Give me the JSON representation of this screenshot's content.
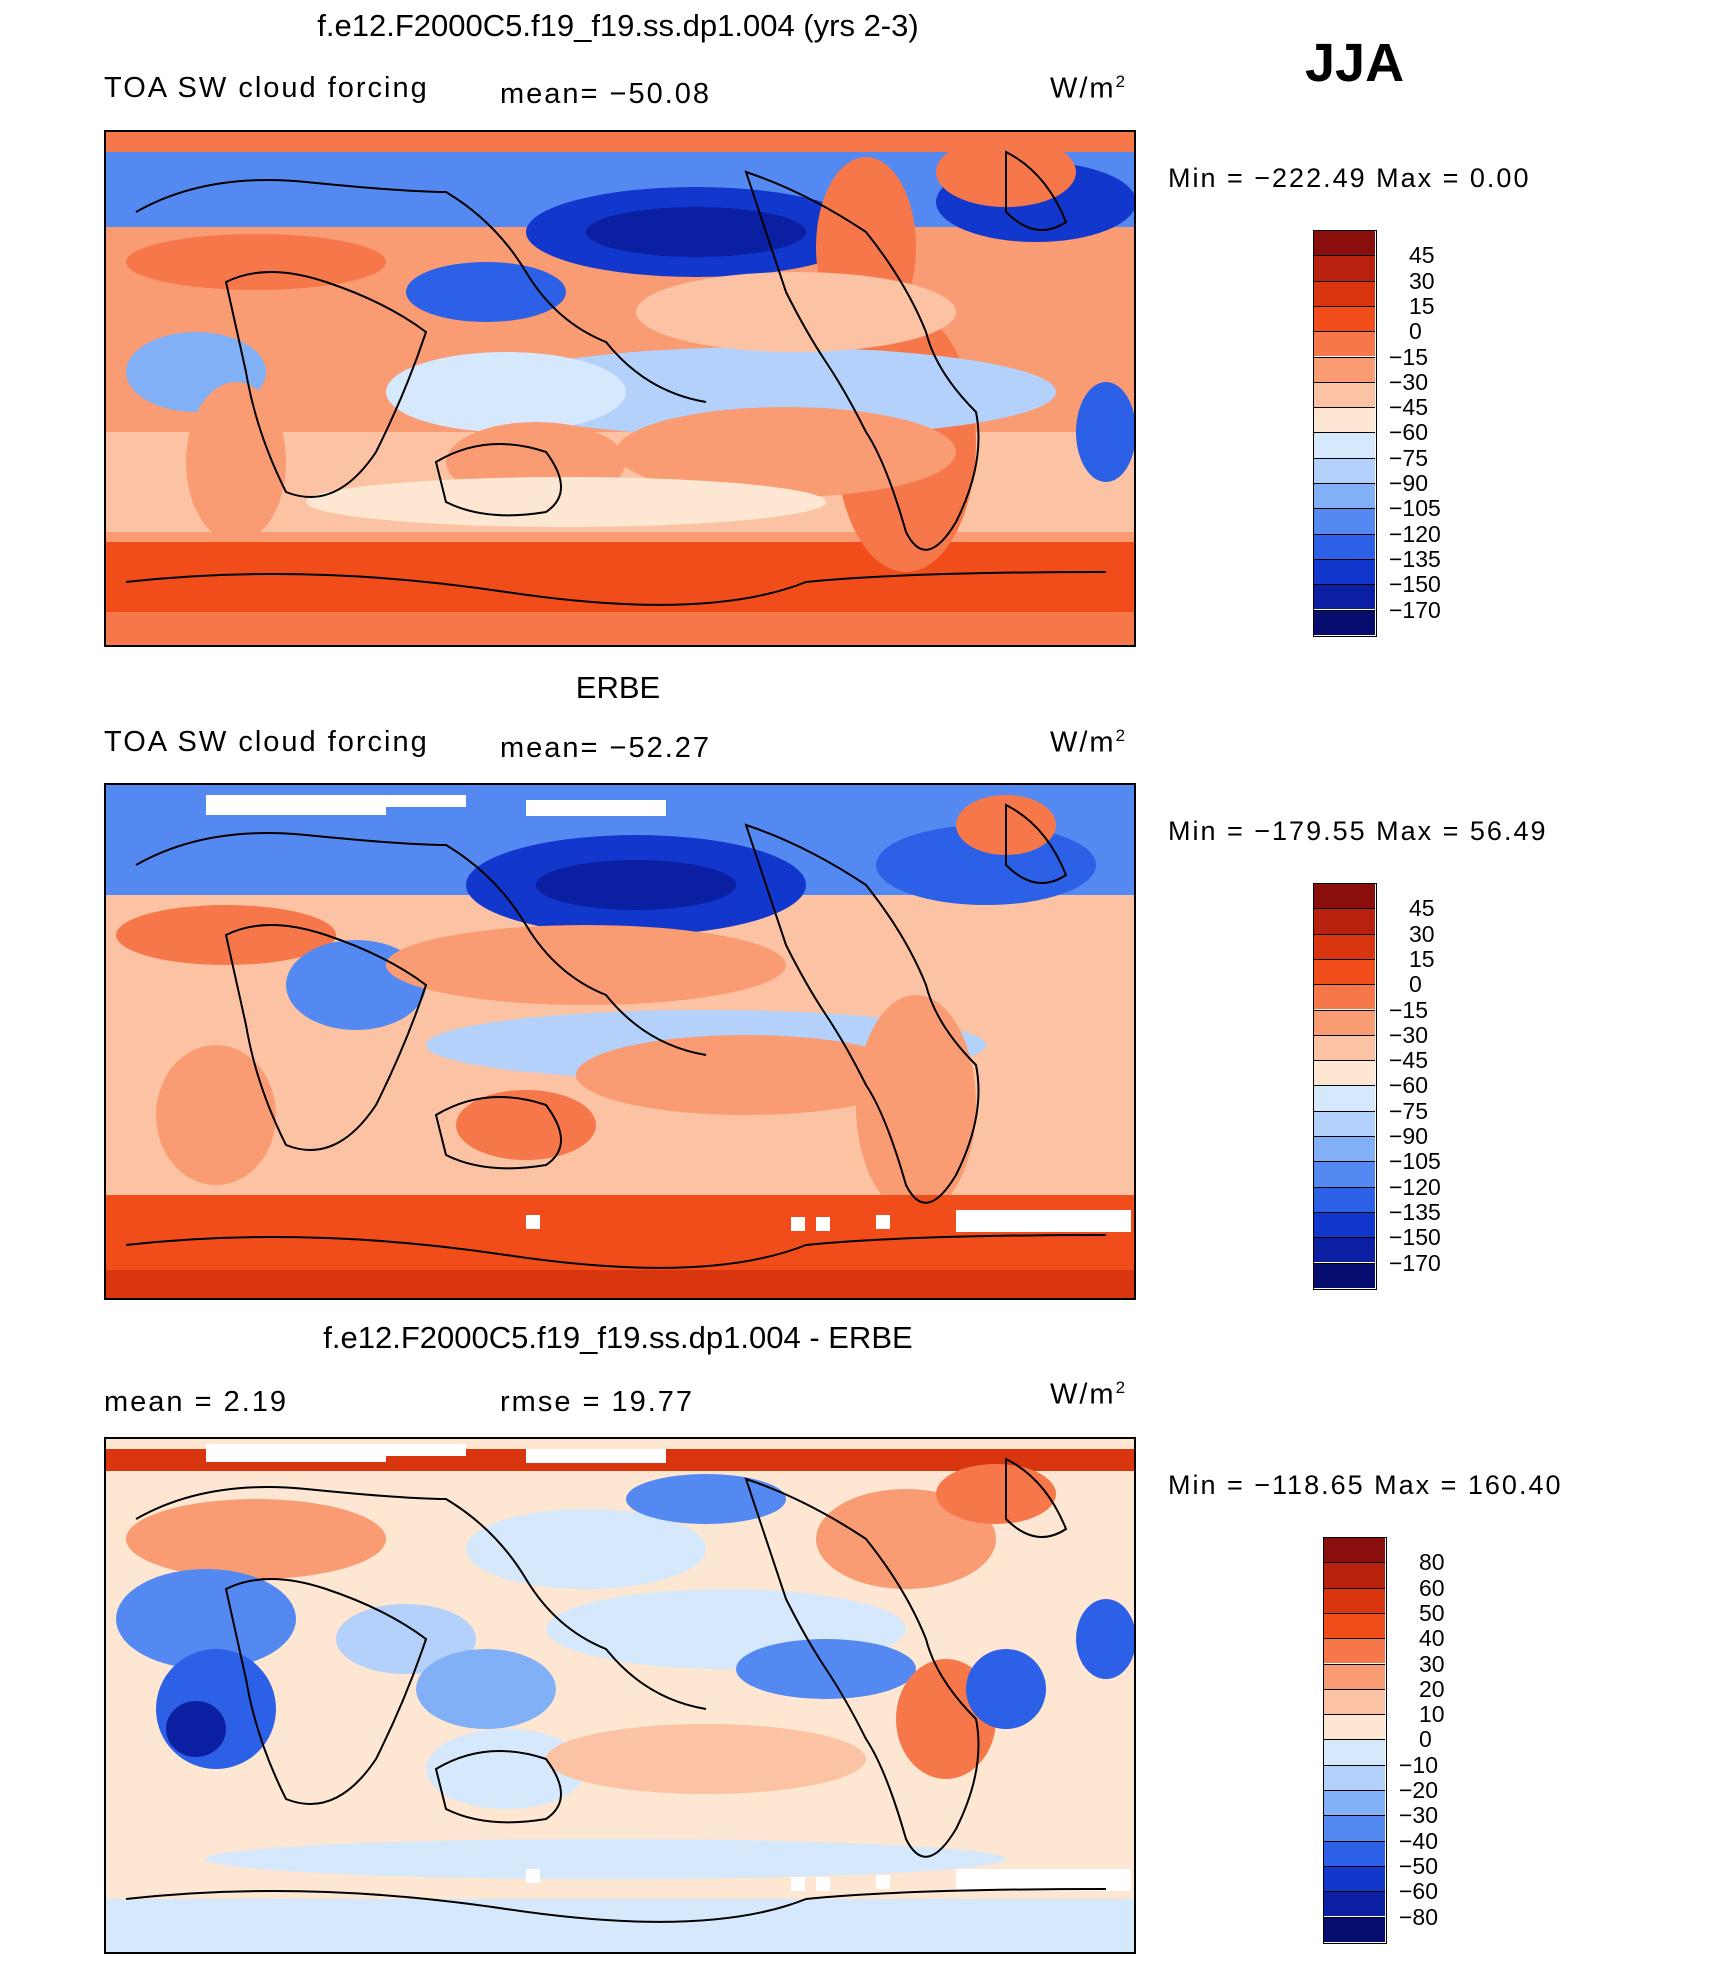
{
  "season": "JJA",
  "panels": [
    {
      "id": "model",
      "title": "f.e12.F2000C5.f19_f19.ss.dp1.004 (yrs 2-3)",
      "left_label": "TOA SW cloud forcing",
      "center_label": "mean= −50.08",
      "units_base": "W/m",
      "units_exp": "2",
      "minmax": "Min  =  −222.49  Max  =     0.00",
      "colorbar": {
        "labels": [
          "45",
          "30",
          "15",
          "0",
          "−15",
          "−30",
          "−45",
          "−60",
          "−75",
          "−90",
          "−105",
          "−120",
          "−135",
          "−150",
          "−170"
        ],
        "colors": [
          "#8a0e0b",
          "#b7210d",
          "#d9360f",
          "#f04d1a",
          "#f6784a",
          "#f99b73",
          "#fbc3a3",
          "#fde6d2",
          "#d6e8fb",
          "#b3d1fa",
          "#82b0f6",
          "#5489f2",
          "#2c60e6",
          "#1237cc",
          "#0b1fa3",
          "#060d6e"
        ]
      }
    },
    {
      "id": "obs",
      "title": "ERBE",
      "left_label": "TOA SW cloud forcing",
      "center_label": "mean= −52.27",
      "units_base": "W/m",
      "units_exp": "2",
      "minmax": "Min  =  −179.55  Max  =    56.49",
      "colorbar": {
        "labels": [
          "45",
          "30",
          "15",
          "0",
          "−15",
          "−30",
          "−45",
          "−60",
          "−75",
          "−90",
          "−105",
          "−120",
          "−135",
          "−150",
          "−170"
        ],
        "colors": [
          "#8a0e0b",
          "#b7210d",
          "#d9360f",
          "#f04d1a",
          "#f6784a",
          "#f99b73",
          "#fbc3a3",
          "#fde6d2",
          "#d6e8fb",
          "#b3d1fa",
          "#82b0f6",
          "#5489f2",
          "#2c60e6",
          "#1237cc",
          "#0b1fa3",
          "#060d6e"
        ]
      }
    },
    {
      "id": "diff",
      "title": "f.e12.F2000C5.f19_f19.ss.dp1.004 - ERBE",
      "left_label": "mean =     2.19",
      "center_label": "rmse  =    19.77",
      "units_base": "W/m",
      "units_exp": "2",
      "minmax": "Min  =  −118.65  Max  =  160.40",
      "colorbar": {
        "labels": [
          "80",
          "60",
          "50",
          "40",
          "30",
          "20",
          "10",
          "0",
          "−10",
          "−20",
          "−30",
          "−40",
          "−50",
          "−60",
          "−80"
        ],
        "colors": [
          "#8a0e0b",
          "#b7210d",
          "#d9360f",
          "#f04d1a",
          "#f6784a",
          "#f99b73",
          "#fbc3a3",
          "#fde6d2",
          "#d6e8fb",
          "#b3d1fa",
          "#82b0f6",
          "#5489f2",
          "#2c60e6",
          "#1237cc",
          "#0b1fa3",
          "#060d6e"
        ]
      }
    }
  ],
  "palette": {
    "dark_red": "#b7210d",
    "red": "#f04d1a",
    "orange": "#f6784a",
    "salmon": "#f99b73",
    "peach": "#fbc3a3",
    "cream": "#fde6d2",
    "pale_blue": "#d6e8fb",
    "light_blue": "#b3d1fa",
    "blue": "#5489f2",
    "deep_blue": "#1237cc",
    "navy": "#060d6e"
  }
}
